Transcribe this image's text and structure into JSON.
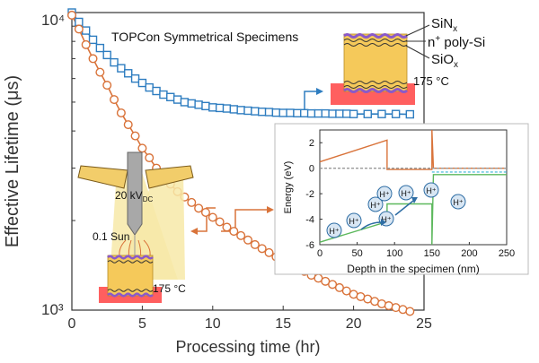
{
  "colors": {
    "series_blue": "#2e7dc0",
    "series_orange": "#d9733a",
    "gold": "#f5c95a",
    "purple": "#8a5ac8",
    "heat_red": "#e8353b",
    "green": "#5cb85c",
    "gray": "#999999"
  },
  "chart_data": [
    {
      "type": "scatter",
      "title": "TOPCon Symmetrical Specimens",
      "xlabel": "Processing time (hr)",
      "ylabel": "Effective Lifetime (μs)",
      "xlim": [
        0,
        25
      ],
      "ylim": [
        1000,
        10000
      ],
      "yscale": "log",
      "x_ticks": [
        "0",
        "5",
        "10",
        "15",
        "20",
        "25"
      ],
      "y_ticks": [
        "10³",
        "10⁴"
      ],
      "grid": false,
      "series": [
        {
          "color": "#2e7dc0",
          "marker": "square",
          "points": [
            [
              0,
              10000
            ],
            [
              0.5,
              9300
            ],
            [
              1,
              8700
            ],
            [
              1.5,
              8100
            ],
            [
              2,
              7600
            ],
            [
              2.5,
              7200
            ],
            [
              3,
              6800
            ],
            [
              3.5,
              6500
            ],
            [
              4,
              6250
            ],
            [
              4.5,
              6000
            ],
            [
              5,
              5800
            ],
            [
              5.5,
              5600
            ],
            [
              6,
              5450
            ],
            [
              6.5,
              5300
            ],
            [
              7,
              5200
            ],
            [
              7.5,
              5100
            ],
            [
              8,
              5000
            ],
            [
              8.5,
              4950
            ],
            [
              9,
              4900
            ],
            [
              9.5,
              4850
            ],
            [
              10,
              4800
            ],
            [
              10.5,
              4780
            ],
            [
              11,
              4760
            ],
            [
              11.5,
              4730
            ],
            [
              12,
              4700
            ],
            [
              12.5,
              4680
            ],
            [
              13,
              4660
            ],
            [
              13.5,
              4640
            ],
            [
              14,
              4630
            ],
            [
              14.5,
              4610
            ],
            [
              15,
              4600
            ],
            [
              15.5,
              4600
            ],
            [
              16,
              4590
            ],
            [
              16.5,
              4590
            ],
            [
              17,
              4580
            ],
            [
              17.5,
              4580
            ],
            [
              18,
              4580
            ],
            [
              18.5,
              4570
            ],
            [
              19,
              4570
            ],
            [
              19.5,
              4570
            ],
            [
              20,
              4560
            ],
            [
              21,
              4560
            ],
            [
              22,
              4560
            ],
            [
              23,
              4560
            ],
            [
              24,
              4550
            ]
          ]
        },
        {
          "color": "#d9733a",
          "marker": "circle",
          "points": [
            [
              0,
              9800
            ],
            [
              0.5,
              8800
            ],
            [
              1,
              7800
            ],
            [
              1.5,
              7000
            ],
            [
              2,
              6300
            ],
            [
              2.5,
              5700
            ],
            [
              3,
              5100
            ],
            [
              3.5,
              4600
            ],
            [
              4,
              4200
            ],
            [
              4.5,
              3850
            ],
            [
              5,
              3500
            ],
            [
              5.5,
              3250
            ],
            [
              6,
              3000
            ],
            [
              6.5,
              2800
            ],
            [
              7,
              2650
            ],
            [
              7.5,
              2500
            ],
            [
              8,
              2400
            ],
            [
              8.5,
              2300
            ],
            [
              9,
              2200
            ],
            [
              9.5,
              2130
            ],
            [
              10,
              2050
            ],
            [
              10.5,
              1980
            ],
            [
              11,
              1900
            ],
            [
              11.5,
              1840
            ],
            [
              12,
              1780
            ],
            [
              12.5,
              1720
            ],
            [
              13,
              1660
            ],
            [
              13.5,
              1610
            ],
            [
              14,
              1560
            ],
            [
              14.5,
              1510
            ],
            [
              15,
              1470
            ],
            [
              15.5,
              1430
            ],
            [
              16,
              1390
            ],
            [
              16.5,
              1350
            ],
            [
              17,
              1310
            ],
            [
              17.5,
              1280
            ],
            [
              18,
              1250
            ],
            [
              18.5,
              1220
            ],
            [
              19,
              1190
            ],
            [
              19.5,
              1160
            ],
            [
              20,
              1130
            ],
            [
              20.5,
              1110
            ],
            [
              21,
              1090
            ],
            [
              21.5,
              1070
            ],
            [
              22,
              1050
            ],
            [
              22.5,
              1035
            ],
            [
              23,
              1020
            ],
            [
              23.5,
              1005
            ],
            [
              24,
              990
            ]
          ]
        }
      ]
    },
    {
      "type": "line",
      "title": "",
      "xlabel": "Depth in the specimen (nm)",
      "ylabel": "Energy (eV)",
      "xlim": [
        0,
        250
      ],
      "ylim": [
        -6,
        3
      ],
      "x_ticks": [
        "0",
        "50",
        "100",
        "150",
        "200",
        "250"
      ],
      "y_ticks": [
        "2",
        "0",
        "-2",
        "-4",
        "-6"
      ],
      "series": [
        {
          "color": "#d9733a",
          "points": [
            [
              0,
              0.5
            ],
            [
              90,
              2.2
            ],
            [
              90,
              -0.1
            ],
            [
              150,
              -0.1
            ],
            [
              150,
              3
            ],
            [
              152,
              0
            ],
            [
              250,
              0
            ]
          ]
        },
        {
          "color": "#5cb85c",
          "points": [
            [
              0,
              -5.8
            ],
            [
              90,
              -4.2
            ],
            [
              90,
              -2.8
            ],
            [
              150,
              -2.8
            ],
            [
              150,
              -6
            ],
            [
              152,
              -0.5
            ],
            [
              250,
              -0.5
            ]
          ]
        },
        {
          "color": "#999999",
          "dashed": true,
          "points": [
            [
              0,
              0
            ],
            [
              250,
              0
            ]
          ]
        },
        {
          "color": "#5bc0de",
          "dashed": true,
          "points": [
            [
              150,
              -0.3
            ],
            [
              250,
              -0.3
            ]
          ]
        }
      ]
    }
  ],
  "specimen_labels": {
    "sinx": "SiN",
    "sinx_sub": "x",
    "npoly_sup": "+",
    "npoly_a": "n",
    "npoly_b": " poly-Si",
    "siox": "SiO",
    "siox_sub": "x",
    "temp_top": "175 °C",
    "temp_bottom": "175 °C"
  },
  "corona": {
    "voltage": "20 kV",
    "voltage_sub": "DC",
    "sun": "0.1 Sun"
  },
  "ions": [
    "H⁺",
    "H⁺",
    "H⁺",
    "H⁺",
    "H⁺",
    "H⁺",
    "H⁺",
    "H⁺"
  ]
}
